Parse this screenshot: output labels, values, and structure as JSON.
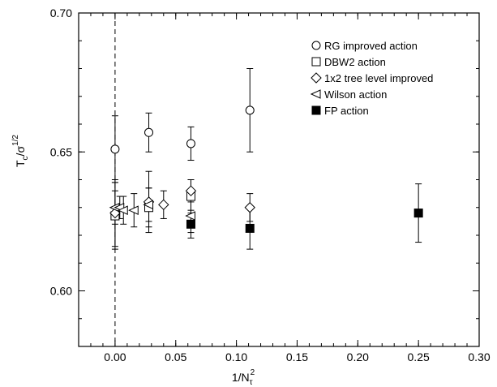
{
  "chart_data": {
    "type": "scatter",
    "xlabel_main": "1/N",
    "xlabel_sub": "τ",
    "xlabel_sup": "2",
    "ylabel_main": "T",
    "ylabel_sub": "c",
    "ylabel_mid": "/σ",
    "ylabel_sup": "1/2",
    "xlim": [
      -0.03,
      0.3
    ],
    "ylim": [
      0.58,
      0.7
    ],
    "x_ticks": [
      0.0,
      0.05,
      0.1,
      0.15,
      0.2,
      0.25,
      0.3
    ],
    "x_tick_labels": [
      "0.00",
      "0.05",
      "0.10",
      "0.15",
      "0.20",
      "0.25",
      "0.30"
    ],
    "y_ticks": [
      0.6,
      0.65,
      0.7
    ],
    "y_tick_labels": [
      "0.60",
      "0.65",
      "0.70"
    ],
    "x_minor_step": 0.01,
    "y_minor_step": 0.01,
    "reference_line_x": 0.0,
    "legend_position": "top-right",
    "series": [
      {
        "name": "RG improved action",
        "marker": "circle",
        "points": [
          {
            "x": 0.0,
            "y": 0.651,
            "err": 0.012
          },
          {
            "x": 0.0278,
            "y": 0.657,
            "err": 0.007
          },
          {
            "x": 0.0625,
            "y": 0.653,
            "err": 0.006
          },
          {
            "x": 0.1111,
            "y": 0.665,
            "err": 0.015
          }
        ]
      },
      {
        "name": "DBW2 action",
        "marker": "square-open",
        "points": [
          {
            "x": 0.0,
            "y": 0.627,
            "err": 0.012
          },
          {
            "x": 0.0278,
            "y": 0.63,
            "err": 0.007
          },
          {
            "x": 0.0625,
            "y": 0.634,
            "err": 0.006
          }
        ]
      },
      {
        "name": "1x2 tree level improved",
        "marker": "diamond",
        "points": [
          {
            "x": 0.0,
            "y": 0.628,
            "err": 0.012
          },
          {
            "x": 0.0278,
            "y": 0.632,
            "err": 0.011
          },
          {
            "x": 0.04,
            "y": 0.631,
            "err": 0.005
          },
          {
            "x": 0.0625,
            "y": 0.636,
            "err": 0.004
          },
          {
            "x": 0.1111,
            "y": 0.63,
            "err": 0.005
          }
        ]
      },
      {
        "name": "Wilson action",
        "marker": "triangle-left",
        "points": [
          {
            "x": 0.0,
            "y": 0.63,
            "err": 0.006
          },
          {
            "x": 0.0039,
            "y": 0.63,
            "err": 0.004
          },
          {
            "x": 0.0069,
            "y": 0.629,
            "err": 0.005
          },
          {
            "x": 0.0156,
            "y": 0.629,
            "err": 0.006
          },
          {
            "x": 0.0278,
            "y": 0.631,
            "err": 0.006
          },
          {
            "x": 0.0625,
            "y": 0.627,
            "err": 0.006
          }
        ]
      },
      {
        "name": "FP action",
        "marker": "square-filled",
        "points": [
          {
            "x": 0.0625,
            "y": 0.624,
            "err": 0.005
          },
          {
            "x": 0.1111,
            "y": 0.6225,
            "err": 0.0075
          },
          {
            "x": 0.25,
            "y": 0.628,
            "err": 0.0105
          }
        ]
      }
    ]
  }
}
